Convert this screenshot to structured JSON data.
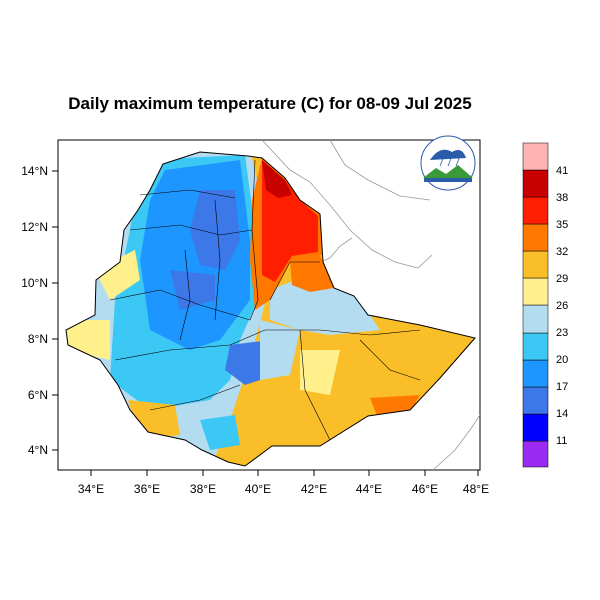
{
  "title": "Daily maximum temperature (C) for 08-09 Jul 2025",
  "map": {
    "region": "Ethiopia",
    "lon_range": [
      33,
      48
    ],
    "lat_range": [
      3,
      15
    ],
    "x_ticks": [
      "34°E",
      "36°E",
      "38°E",
      "40°E",
      "42°E",
      "44°E",
      "46°E",
      "48°E"
    ],
    "y_ticks": [
      "4°N",
      "6°N",
      "8°N",
      "10°N",
      "12°N",
      "14°N"
    ],
    "logo": {
      "name": "ethiopian-meteorology-institute-logo"
    }
  },
  "colorbar": {
    "labels": [
      "11",
      "14",
      "17",
      "20",
      "23",
      "26",
      "29",
      "32",
      "35",
      "38",
      "41"
    ],
    "colors": [
      "#9b2bf0",
      "#0000ff",
      "#3c78e8",
      "#1e96ff",
      "#3cc8f5",
      "#b4dcf0",
      "#fff08c",
      "#fabe28",
      "#ff7800",
      "#ff1e00",
      "#c80000",
      "#ffb4b4"
    ]
  }
}
